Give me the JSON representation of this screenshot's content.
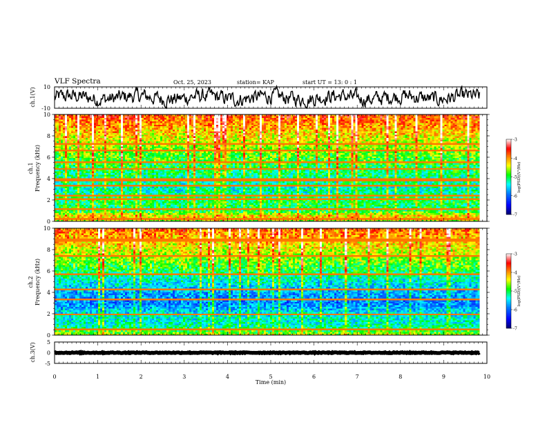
{
  "header": {
    "title": "VLF Spectra",
    "date": "Oct. 25, 2023",
    "station": "station= KAP",
    "start": "start  UT =  13: 0  : 1"
  },
  "colorbar": {
    "label": "log(PSD)(V²/Hz)",
    "ticks": [
      "-3",
      "-4",
      "-5",
      "-6",
      "-7"
    ],
    "colors": [
      "#ff0000",
      "#ff9900",
      "#ffff00",
      "#00ff00",
      "#00ffff",
      "#0077ff",
      "#0000ff",
      "#000080"
    ]
  },
  "chart_data": [
    {
      "type": "line",
      "name": "ch1-voltage",
      "ylabel": "ch.1(V)",
      "ylim": [
        -10,
        10
      ],
      "yticks": [
        "10",
        "-10"
      ],
      "xlim": [
        0,
        10
      ],
      "x_end": 9.83,
      "mean": 0,
      "amplitude": 5,
      "color": "#000000"
    },
    {
      "type": "heatmap",
      "name": "ch1-spectrogram",
      "ylabel_line1": "ch.1",
      "ylabel_line2": "Frequency (kHz)",
      "xlim": [
        0,
        10
      ],
      "ylim": [
        0,
        10
      ],
      "yticks": [
        "0",
        "2",
        "4",
        "6",
        "8",
        "10"
      ],
      "x_end": 9.83,
      "z_range": [
        -7,
        -3
      ],
      "band_level_by_khz": [
        {
          "f": 0.0,
          "z": -4.6
        },
        {
          "f": 0.5,
          "z": -4.2
        },
        {
          "f": 1.0,
          "z": -5.1
        },
        {
          "f": 2.0,
          "z": -5.0
        },
        {
          "f": 3.0,
          "z": -5.3
        },
        {
          "f": 4.0,
          "z": -5.2
        },
        {
          "f": 5.0,
          "z": -5.0
        },
        {
          "f": 6.0,
          "z": -4.8
        },
        {
          "f": 7.0,
          "z": -4.6
        },
        {
          "f": 8.0,
          "z": -4.3
        },
        {
          "f": 9.0,
          "z": -4.0
        },
        {
          "f": 10.0,
          "z": -3.7
        }
      ],
      "lines_khz": [
        0.3,
        1.2,
        2.1,
        2.4,
        3.3,
        3.9,
        4.9,
        5.5,
        6.6,
        7.2
      ]
    },
    {
      "type": "heatmap",
      "name": "ch2-spectrogram",
      "ylabel_line1": "ch.2",
      "ylabel_line2": "Frequency (kHz)",
      "xlim": [
        0,
        10
      ],
      "ylim": [
        0,
        10
      ],
      "yticks": [
        "0",
        "2",
        "4",
        "6",
        "8",
        "10"
      ],
      "x_end": 9.83,
      "z_range": [
        -7,
        -3
      ],
      "band_level_by_khz": [
        {
          "f": 0.0,
          "z": -4.5
        },
        {
          "f": 0.5,
          "z": -5.0
        },
        {
          "f": 1.0,
          "z": -5.3
        },
        {
          "f": 2.0,
          "z": -5.4
        },
        {
          "f": 3.0,
          "z": -5.9
        },
        {
          "f": 4.0,
          "z": -5.7
        },
        {
          "f": 5.0,
          "z": -5.4
        },
        {
          "f": 6.0,
          "z": -5.0
        },
        {
          "f": 7.0,
          "z": -4.7
        },
        {
          "f": 8.0,
          "z": -4.4
        },
        {
          "f": 9.0,
          "z": -4.1
        },
        {
          "f": 10.0,
          "z": -3.8
        }
      ],
      "lines_khz": [
        0.6,
        1.9,
        3.4,
        4.3,
        5.7,
        7.4,
        8.9
      ]
    },
    {
      "type": "line",
      "name": "ch3-voltage",
      "ylabel": "ch.3(V)",
      "ylim": [
        -5,
        5
      ],
      "yticks": [
        "5",
        "0",
        "-5"
      ],
      "xlim": [
        0,
        10
      ],
      "xticks": [
        "0",
        "1",
        "2",
        "3",
        "4",
        "5",
        "6",
        "7",
        "8",
        "9",
        "10"
      ],
      "xlabel": "Time (min)",
      "x_end": 9.83,
      "mean": 0,
      "amplitude": 0.4,
      "color": "#000000"
    }
  ]
}
